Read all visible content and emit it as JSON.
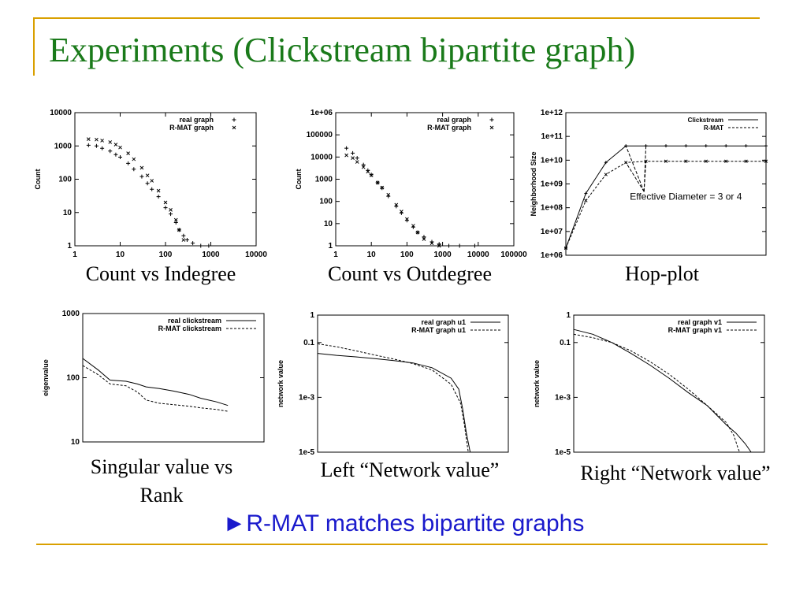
{
  "slide": {
    "title": "Experiments (Clickstream bipartite graph)",
    "conclusion_arrow": "►",
    "conclusion_text": "R-MAT matches bipartite graphs",
    "title_color": "#1a7a1a",
    "accent_rule_color": "#d9a000",
    "conclusion_color": "#1a1acc"
  },
  "captions": {
    "indegree": "Count vs Indegree",
    "outdegree": "Count vs Outdegree",
    "hopplot": "Hop-plot",
    "singular_line1": "Singular value vs",
    "singular_line2": "Rank",
    "left_nv": "Left “Network value”",
    "right_nv": "Right “Network value”"
  },
  "chart_data": [
    {
      "id": "indegree",
      "type": "scatter",
      "title": "",
      "xlabel": "",
      "ylabel": "Count",
      "xscale": "log",
      "yscale": "log",
      "xlim": [
        1,
        10000
      ],
      "ylim": [
        1,
        10000
      ],
      "xticks": [
        "1",
        "10",
        "100",
        "1000",
        "10000"
      ],
      "yticks": [
        "1",
        "10",
        "100",
        "1000",
        "10000"
      ],
      "legend_position": "top-right",
      "series": [
        {
          "name": "real graph",
          "marker": "+",
          "x": [
            2,
            3,
            4,
            6,
            8,
            10,
            15,
            20,
            30,
            40,
            50,
            70,
            100,
            130,
            170,
            200,
            250,
            300,
            400,
            600,
            900
          ],
          "y": [
            1050,
            1000,
            850,
            700,
            550,
            460,
            300,
            200,
            120,
            75,
            50,
            30,
            14,
            9,
            5,
            3,
            2,
            1.5,
            1.2,
            1,
            1
          ]
        },
        {
          "name": "R-MAT graph",
          "marker": "x",
          "x": [
            2,
            3,
            4,
            6,
            8,
            10,
            15,
            20,
            30,
            40,
            50,
            70,
            100,
            130,
            170,
            200,
            250
          ],
          "y": [
            1600,
            1550,
            1450,
            1300,
            1100,
            900,
            600,
            400,
            220,
            130,
            90,
            45,
            20,
            12,
            6,
            3,
            1.5
          ]
        }
      ]
    },
    {
      "id": "outdegree",
      "type": "scatter",
      "title": "",
      "xlabel": "",
      "ylabel": "Count",
      "xscale": "log",
      "yscale": "log",
      "xlim": [
        1,
        100000
      ],
      "ylim": [
        1,
        1000000
      ],
      "xticks": [
        "1",
        "10",
        "100",
        "1000",
        "10000",
        "100000"
      ],
      "yticks": [
        "1",
        "10",
        "100",
        "1000",
        "10000",
        "100000",
        "1e+06"
      ],
      "legend_position": "top-right",
      "series": [
        {
          "name": "real graph",
          "marker": "+",
          "x": [
            2,
            3,
            4,
            6,
            8,
            10,
            15,
            20,
            30,
            50,
            70,
            100,
            150,
            200,
            300,
            500,
            800,
            1500,
            3000,
            8000
          ],
          "y": [
            25000,
            15000,
            9000,
            4500,
            2500,
            1600,
            700,
            400,
            170,
            60,
            30,
            14,
            7,
            4,
            2.5,
            1.5,
            1.2,
            1,
            1,
            1
          ]
        },
        {
          "name": "R-MAT graph",
          "marker": "x",
          "x": [
            2,
            3,
            4,
            6,
            8,
            10,
            15,
            20,
            30,
            50,
            70,
            100,
            150,
            200,
            300,
            500,
            800
          ],
          "y": [
            12000,
            9000,
            6000,
            3500,
            2200,
            1500,
            700,
            420,
            200,
            70,
            35,
            16,
            8,
            4,
            2,
            1.3,
            1
          ]
        }
      ]
    },
    {
      "id": "hopplot",
      "type": "line",
      "title": "",
      "xlabel": "",
      "ylabel": "Neighborhood Size",
      "yscale": "log",
      "xlim": [
        0,
        10
      ],
      "ylim": [
        1000000,
        1000000000000
      ],
      "yticks": [
        "1e+06",
        "1e+07",
        "1e+08",
        "1e+09",
        "1e+10",
        "1e+11",
        "1e+12"
      ],
      "legend_position": "top-right",
      "annotation": "Effective Diameter = 3 or 4",
      "series": [
        {
          "name": "Clickstream",
          "style": "solid",
          "x": [
            0,
            1,
            2,
            3,
            4,
            5,
            6,
            7,
            8,
            9,
            10
          ],
          "y": [
            2000000,
            400000000,
            8000000000,
            40000000000,
            40000000000,
            40000000000,
            40000000000,
            40000000000,
            40000000000,
            40000000000,
            40000000000
          ]
        },
        {
          "name": "R-MAT",
          "style": "dashed",
          "x": [
            0,
            1,
            2,
            3,
            4,
            5,
            6,
            7,
            8,
            9,
            10
          ],
          "y": [
            2000000,
            200000000,
            2500000000,
            8000000000,
            9000000000,
            9000000000,
            9000000000,
            9000000000,
            9000000000,
            9000000000,
            9000000000
          ]
        }
      ]
    },
    {
      "id": "singular",
      "type": "line",
      "title": "",
      "xlabel": "",
      "ylabel": "eigenvalue",
      "xscale": "log",
      "yscale": "log",
      "xlim": [
        1,
        100
      ],
      "ylim": [
        10,
        1000
      ],
      "yticks": [
        "10",
        "100",
        "1000"
      ],
      "legend_position": "top-right",
      "series": [
        {
          "name": "real clickstream",
          "style": "solid",
          "x": [
            1,
            1.5,
            2,
            3,
            4,
            5,
            7,
            10,
            15,
            20,
            30,
            40
          ],
          "y": [
            200,
            130,
            92,
            88,
            80,
            72,
            68,
            62,
            55,
            48,
            42,
            37
          ]
        },
        {
          "name": "R-MAT clickstream",
          "style": "dashed",
          "x": [
            1,
            1.5,
            2,
            3,
            4,
            5,
            7,
            10,
            15,
            20,
            30,
            40
          ],
          "y": [
            155,
            110,
            80,
            75,
            60,
            45,
            40,
            38,
            36,
            34,
            32,
            30
          ]
        }
      ]
    },
    {
      "id": "left_nv",
      "type": "line",
      "title": "",
      "xlabel": "",
      "ylabel": "network value",
      "yscale": "log",
      "xlim": [
        0,
        1
      ],
      "ylim": [
        1e-05,
        1
      ],
      "yticks": [
        "1e-5",
        "1e-3",
        "0.1",
        "1"
      ],
      "legend_position": "top-right",
      "series": [
        {
          "name": "real graph u1",
          "style": "solid",
          "x": [
            0,
            0.1,
            0.2,
            0.3,
            0.4,
            0.5,
            0.6,
            0.7,
            0.74,
            0.76,
            0.78,
            0.8
          ],
          "y": [
            0.04,
            0.034,
            0.03,
            0.026,
            0.022,
            0.018,
            0.012,
            0.005,
            0.002,
            0.0004,
            5e-05,
            1e-05
          ]
        },
        {
          "name": "R-MAT graph u1",
          "style": "dashed",
          "x": [
            0,
            0.1,
            0.2,
            0.3,
            0.4,
            0.5,
            0.6,
            0.7,
            0.75,
            0.77,
            0.78,
            0.79
          ],
          "y": [
            0.09,
            0.07,
            0.05,
            0.035,
            0.025,
            0.017,
            0.01,
            0.003,
            0.0006,
            0.0001,
            3e-05,
            1e-05
          ]
        }
      ]
    },
    {
      "id": "right_nv",
      "type": "line",
      "title": "",
      "xlabel": "",
      "ylabel": "network value",
      "yscale": "log",
      "xlim": [
        0,
        1
      ],
      "ylim": [
        1e-05,
        1
      ],
      "yticks": [
        "1e-5",
        "1e-3",
        "0.1",
        "1"
      ],
      "legend_position": "top-right",
      "series": [
        {
          "name": "real graph v1",
          "style": "solid",
          "x": [
            0,
            0.1,
            0.2,
            0.3,
            0.4,
            0.5,
            0.6,
            0.7,
            0.8,
            0.85,
            0.9,
            0.93
          ],
          "y": [
            0.3,
            0.2,
            0.1,
            0.04,
            0.015,
            0.005,
            0.0015,
            0.0005,
            0.0001,
            5e-05,
            2e-05,
            1e-05
          ]
        },
        {
          "name": "R-MAT graph v1",
          "style": "dashed",
          "x": [
            0,
            0.1,
            0.2,
            0.3,
            0.4,
            0.5,
            0.6,
            0.7,
            0.8,
            0.84,
            0.86,
            0.87
          ],
          "y": [
            0.2,
            0.15,
            0.1,
            0.05,
            0.02,
            0.007,
            0.002,
            0.0005,
            0.00012,
            4e-05,
            1.5e-05,
            1e-05
          ]
        }
      ]
    }
  ]
}
